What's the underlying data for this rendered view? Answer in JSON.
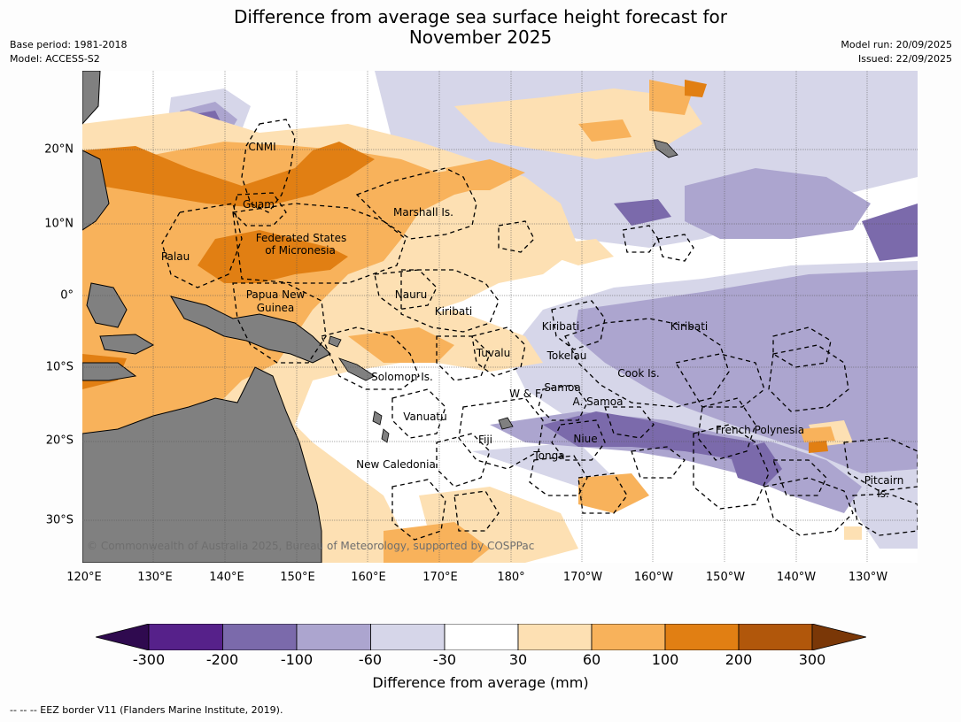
{
  "title_line1": "Difference from average sea surface height forecast for",
  "title_line2": "November 2025",
  "meta_left": {
    "base_period": "Base period: 1981-2018",
    "model": "Model: ACCESS-S2"
  },
  "meta_right": {
    "model_run": "Model run: 20/09/2025",
    "issued": "Issued: 22/09/2025"
  },
  "map": {
    "lon_ticks": [
      "120°E",
      "130°E",
      "140°E",
      "150°E",
      "160°E",
      "170°E",
      "180°",
      "170°W",
      "160°W",
      "150°W",
      "140°W",
      "130°W"
    ],
    "lat_ticks": [
      "20°N",
      "10°N",
      "0°",
      "10°S",
      "20°S",
      "30°S"
    ],
    "labels": {
      "cnmi": "CNMI",
      "guam": "Guam",
      "marshall": "Marshall Is.",
      "palau": "Palau",
      "fsm1": "Federated States",
      "fsm2": "of Micronesia",
      "png1": "Papua New",
      "png2": "Guinea",
      "nauru": "Nauru",
      "kiribati_w": "Kiribati",
      "kiribati_c": "Kiribati",
      "kiribati_e": "Kiribati",
      "tuvalu": "Tuvalu",
      "tokelau": "Tokelau",
      "solomon": "Solomon Is.",
      "cook": "Cook Is.",
      "samoa": "Samoa",
      "wf": "W & F",
      "asamoa": "A. Samoa",
      "vanuatu": "Vanuatu",
      "fiji": "Fiji",
      "niue": "Niue",
      "tonga": "Tonga",
      "frpoly": "French Polynesia",
      "newcal": "New Caledonia",
      "pitcairn1": "Pitcairn",
      "pitcairn2": "Is."
    },
    "copyright": "© Commonwealth of Australia 2025, Bureau of Meteorology, supported by COSPPac"
  },
  "colorbar": {
    "ticks": [
      "-300",
      "-200",
      "-100",
      "-60",
      "-30",
      "30",
      "60",
      "100",
      "200",
      "300"
    ],
    "colors": [
      "#2f0a4f",
      "#56218a",
      "#7b6aab",
      "#aca5cf",
      "#d6d6e9",
      "#ffffff",
      "#fde0b3",
      "#f8b25b",
      "#e17f13",
      "#b1570b",
      "#7a3707"
    ],
    "title": "Difference from average (mm)"
  },
  "footer": "--  --  -- EEZ border V11 (Flanders Marine Institute, 2019)."
}
